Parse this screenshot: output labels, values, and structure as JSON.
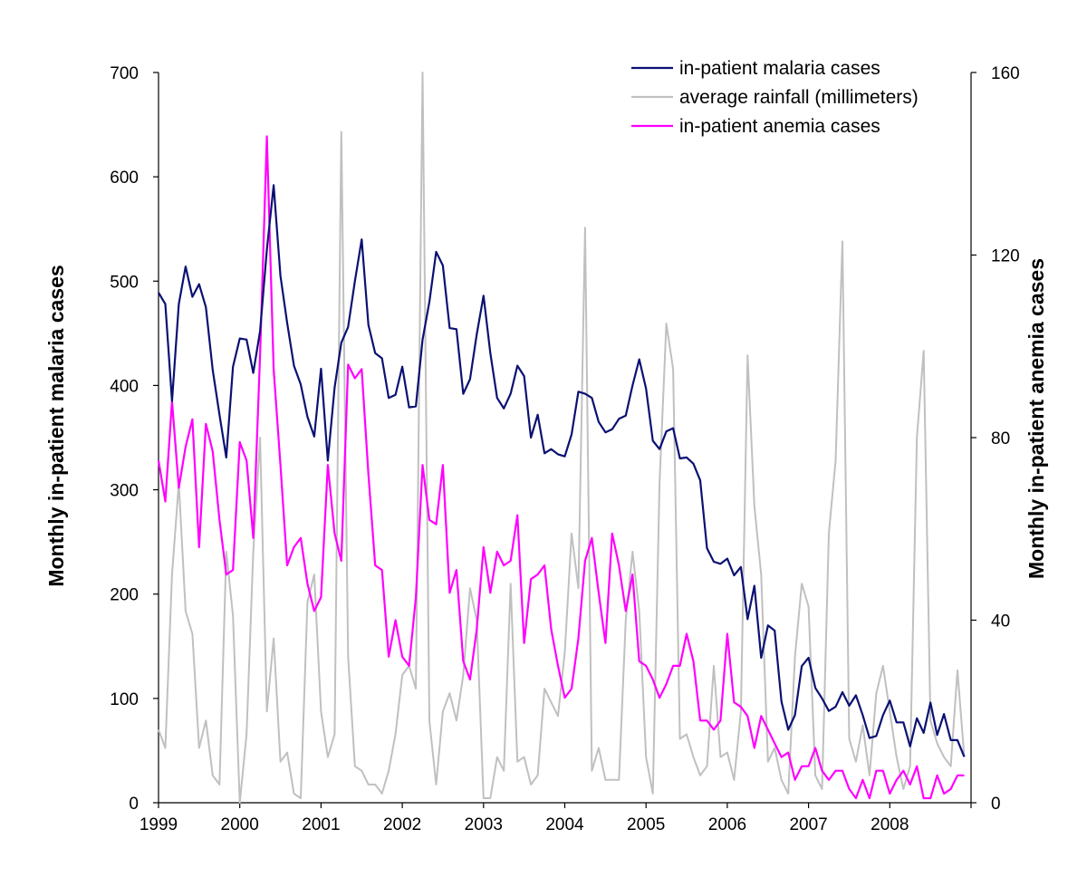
{
  "chart_data": {
    "type": "line",
    "title": "",
    "xlabel": "",
    "ylabel": "Monthly in-patient malaria cases",
    "y2label": "Monthly in-patient anemia cases",
    "ylim": [
      0,
      700
    ],
    "y2lim": [
      0,
      160
    ],
    "yticks": [
      0,
      100,
      200,
      300,
      400,
      500,
      600,
      700
    ],
    "y2ticks": [
      0,
      40,
      80,
      120,
      160
    ],
    "x_start": "1999-01",
    "x_tick_labels": [
      "1999",
      "2000",
      "2001",
      "2002",
      "2003",
      "2004",
      "2005",
      "2006",
      "2007",
      "2008"
    ],
    "grid": false,
    "legend_position": "top-right",
    "series": [
      {
        "name": "in-patient malaria cases",
        "axis": "left",
        "color": "#0a1172",
        "values": [
          489,
          478,
          385,
          478,
          514,
          485,
          497,
          475,
          415,
          372,
          331,
          418,
          445,
          444,
          412,
          452,
          530,
          592,
          505,
          460,
          419,
          401,
          370,
          351,
          416,
          328,
          398,
          441,
          456,
          500,
          540,
          458,
          431,
          426,
          388,
          391,
          418,
          379,
          380,
          444,
          480,
          528,
          515,
          455,
          454,
          392,
          406,
          449,
          486,
          431,
          388,
          378,
          392,
          419,
          409,
          350,
          372,
          335,
          339,
          334,
          332,
          353,
          394,
          392,
          388,
          365,
          355,
          358,
          368,
          371,
          400,
          425,
          397,
          347,
          339,
          356,
          359,
          330,
          331,
          325,
          309,
          244,
          231,
          229,
          234,
          218,
          226,
          176,
          208,
          139,
          170,
          165,
          97,
          70,
          84,
          131,
          139,
          110,
          100,
          88,
          92,
          106,
          93,
          103,
          84,
          62,
          64,
          84,
          98,
          77,
          77,
          54,
          81,
          67,
          96,
          65,
          85,
          60,
          60,
          44
        ]
      },
      {
        "name": "average rainfall (millimeters)",
        "axis": "right",
        "color": "#c0c0c0",
        "values": [
          16,
          12,
          50,
          70,
          42,
          37,
          12,
          18,
          6,
          4,
          55,
          41,
          0,
          15,
          55,
          80,
          20,
          36,
          9,
          11,
          2,
          1,
          44,
          50,
          20,
          10,
          15,
          147,
          32,
          8,
          7,
          4,
          4,
          2,
          7,
          15,
          28,
          30,
          25,
          160,
          18,
          4,
          20,
          24,
          18,
          28,
          47,
          40,
          1,
          1,
          10,
          7,
          48,
          9,
          10,
          4,
          6,
          25,
          22,
          19,
          33,
          59,
          47,
          126,
          7,
          12,
          5,
          5,
          5,
          40,
          55,
          42,
          10,
          2,
          70,
          105,
          95,
          14,
          15,
          10,
          6,
          8,
          30,
          10,
          11,
          5,
          20,
          98,
          65,
          50,
          9,
          12,
          5,
          2,
          32,
          48,
          43,
          6,
          3,
          59,
          75,
          123,
          14,
          9,
          17,
          6,
          24,
          30,
          20,
          10,
          3,
          8,
          80,
          99,
          18,
          13,
          10,
          8,
          29,
          10
        ]
      },
      {
        "name": "in-patient anemia cases",
        "axis": "right",
        "color": "#ff00ff",
        "values": [
          75,
          66,
          88,
          69,
          78,
          84,
          56,
          83,
          77,
          62,
          50,
          51,
          79,
          75,
          58,
          98,
          146,
          95,
          74,
          52,
          56,
          58,
          48,
          42,
          45,
          74,
          59,
          53,
          96,
          93,
          95,
          72,
          52,
          51,
          32,
          40,
          32,
          30,
          45,
          74,
          62,
          61,
          74,
          46,
          51,
          31,
          27,
          38,
          56,
          46,
          55,
          52,
          53,
          63,
          35,
          49,
          50,
          52,
          38,
          30,
          23,
          25,
          36,
          53,
          58,
          46,
          35,
          59,
          52,
          42,
          50,
          31,
          30,
          27,
          23,
          26,
          30,
          30,
          37,
          31,
          18,
          18,
          16,
          18,
          37,
          22,
          21,
          19,
          12,
          19,
          16,
          13,
          10,
          11,
          5,
          8,
          8,
          12,
          7,
          5,
          7,
          7,
          3,
          1,
          5,
          1,
          7,
          7,
          2,
          5,
          7,
          4,
          8,
          1,
          1,
          6,
          2,
          3,
          6,
          6
        ]
      }
    ]
  }
}
